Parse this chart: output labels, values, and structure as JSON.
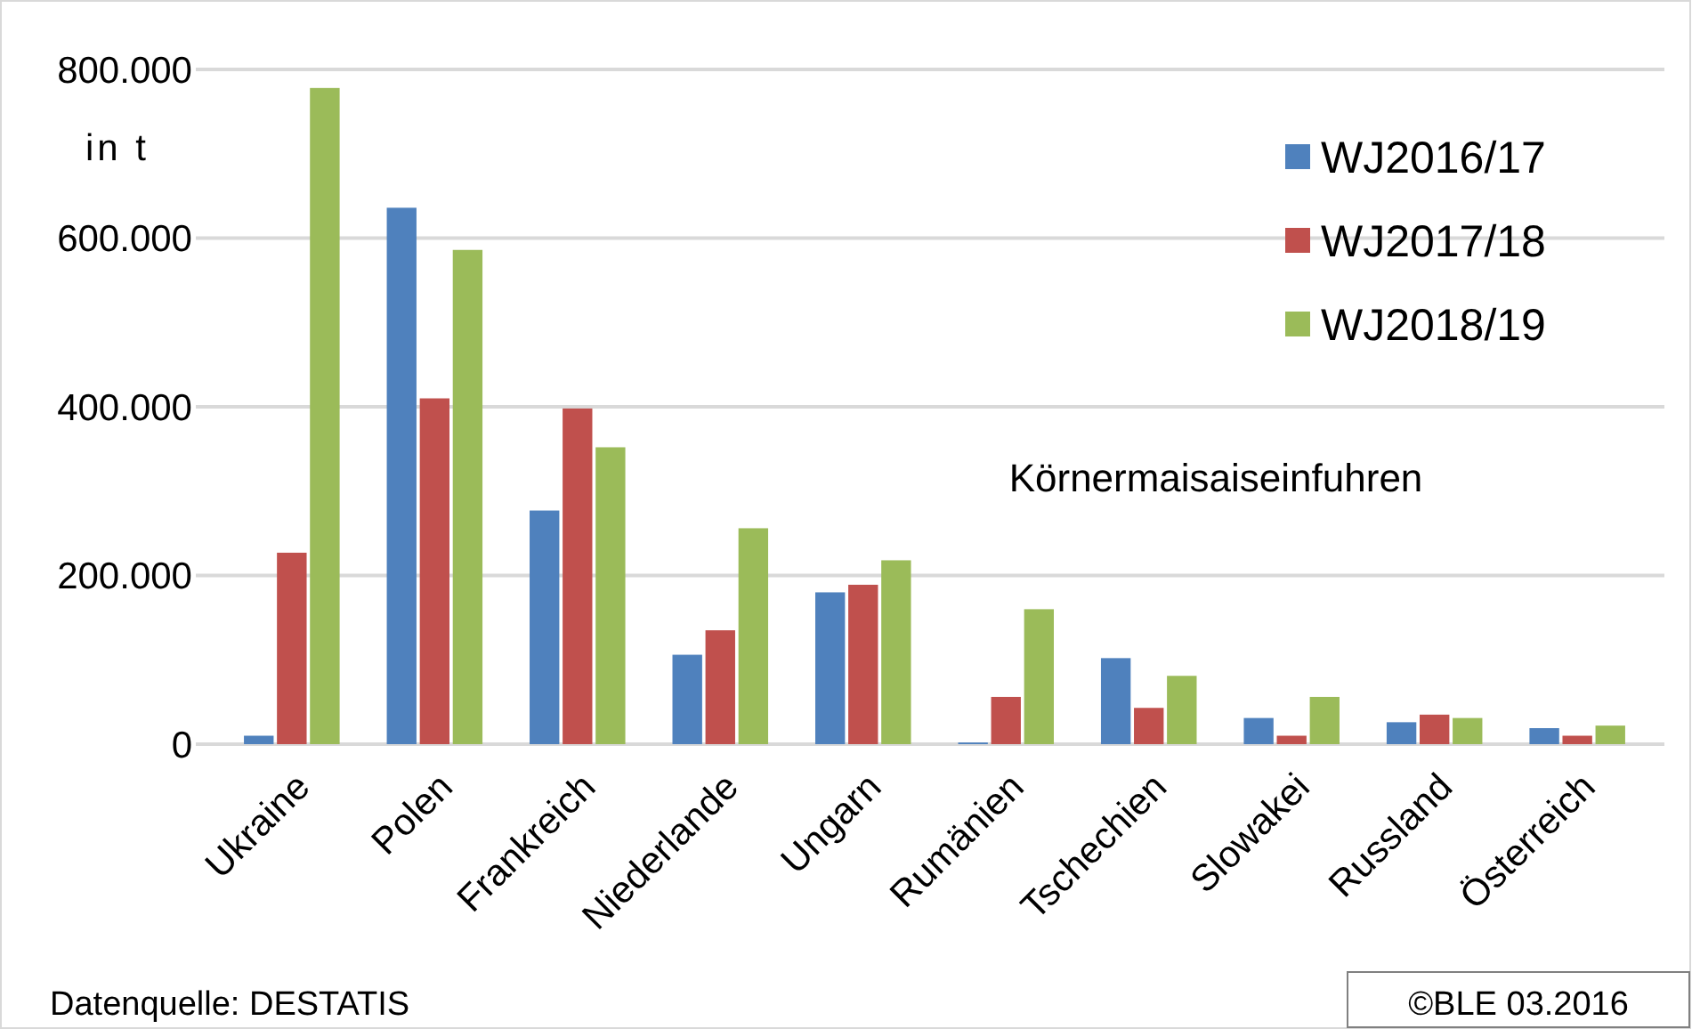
{
  "chart_data": {
    "type": "bar",
    "title": "Körnermaisaiseinfuhren",
    "ylabel": "in t",
    "categories": [
      "Ukraine",
      "Polen",
      "Frankreich",
      "Niederlande",
      "Ungarn",
      "Rumänien",
      "Tschechien",
      "Slowakei",
      "Russland",
      "Österreich"
    ],
    "series": [
      {
        "name": "WJ2016/17",
        "color": "#4f81bd",
        "values": [
          10000,
          636000,
          277000,
          106000,
          180000,
          2000,
          102000,
          31000,
          26000,
          19000
        ]
      },
      {
        "name": "WJ2017/18",
        "color": "#c0504d",
        "values": [
          227000,
          410000,
          398000,
          135000,
          189000,
          56000,
          43000,
          10000,
          35000,
          10000
        ]
      },
      {
        "name": "WJ2018/19",
        "color": "#9bbb59",
        "values": [
          778000,
          586000,
          352000,
          256000,
          218000,
          160000,
          81000,
          56000,
          31000,
          22000
        ]
      }
    ],
    "ylim": [
      0,
      800000
    ],
    "yticks": [
      0,
      {
        "value": 200000,
        "label": "200.000"
      },
      {
        "value": 400000,
        "label": "400.000"
      },
      {
        "value": 600000,
        "label": "600.000"
      },
      {
        "value": 800000,
        "label": "800.000"
      }
    ],
    "grid": "y",
    "legend": "top right",
    "annotations": [
      "Datenquelle: DESTATIS",
      "©BLE 03.2016"
    ]
  }
}
